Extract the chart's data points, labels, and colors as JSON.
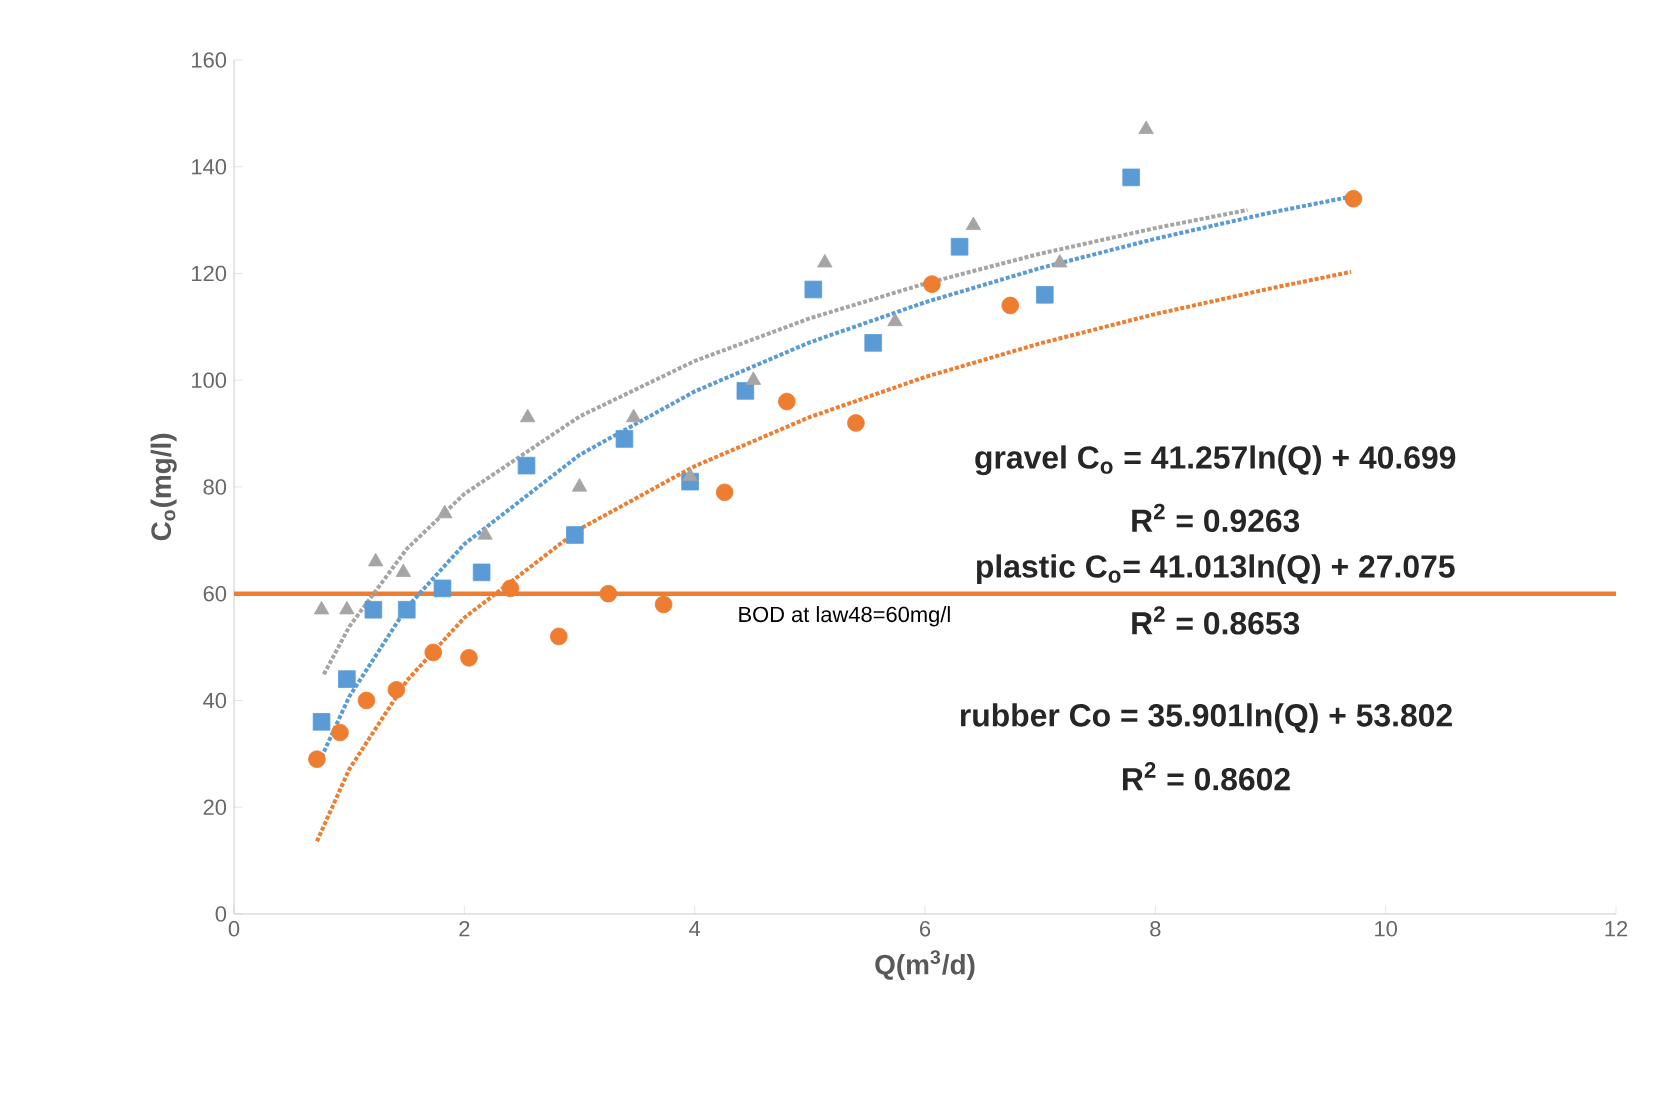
{
  "chart_data": {
    "type": "scatter",
    "xlabel": "Q(m$^{3}$/d)",
    "ylabel": "C$_{o}$(mg/l)",
    "xlim": [
      0,
      12
    ],
    "ylim": [
      0,
      160
    ],
    "xticks": [
      0,
      2,
      4,
      6,
      8,
      10,
      12
    ],
    "yticks": [
      0,
      20,
      40,
      60,
      80,
      100,
      120,
      140,
      160
    ],
    "series": [
      {
        "marker": "triangle",
        "color": "#a5a5a5",
        "x": [
          0.76,
          0.98,
          1.23,
          1.47,
          1.83,
          2.18,
          2.55,
          3.0,
          3.47,
          3.96,
          4.51,
          5.13,
          5.74,
          6.42,
          7.17,
          7.92
        ],
        "values": [
          57,
          57,
          66,
          64,
          75,
          71,
          93,
          80,
          93,
          82,
          100,
          122,
          111,
          129,
          122,
          147
        ]
      },
      {
        "marker": "square",
        "color": "#5b9bd5",
        "x": [
          0.76,
          0.98,
          1.21,
          1.5,
          1.81,
          2.15,
          2.54,
          2.96,
          3.39,
          3.96,
          4.44,
          5.03,
          5.55,
          6.3,
          7.04,
          7.79
        ],
        "values": [
          36,
          44,
          57,
          57,
          61,
          64,
          84,
          71,
          89,
          81,
          98,
          117,
          107,
          125,
          116,
          138
        ]
      },
      {
        "marker": "circle",
        "color": "#ed7d31",
        "x": [
          0.72,
          0.92,
          1.15,
          1.41,
          1.73,
          2.04,
          2.4,
          2.82,
          3.25,
          3.73,
          4.26,
          4.8,
          5.4,
          6.06,
          6.74,
          9.72
        ],
        "values": [
          29,
          34,
          40,
          42,
          49,
          48,
          61,
          52,
          60,
          58,
          79,
          96,
          92,
          118,
          114,
          134
        ]
      },
      {
        "type": "line",
        "line_style": "dotted",
        "marker": "none",
        "color": "#a5a5a5",
        "x": [
          0.78,
          1,
          1.5,
          2,
          3,
          4,
          5,
          6,
          7,
          8,
          8.8
        ],
        "values": [
          44.9,
          53.8,
          68.4,
          78.7,
          93.2,
          103.6,
          111.6,
          118.1,
          123.7,
          128.5,
          131.9
        ]
      },
      {
        "type": "line",
        "line_style": "dotted",
        "marker": "none",
        "color": "#5b9bd5",
        "x": [
          0.76,
          1,
          1.5,
          2,
          3,
          4,
          5,
          6,
          7,
          8,
          9,
          9.7
        ],
        "values": [
          29.4,
          40.7,
          57.4,
          69.3,
          86.0,
          97.9,
          107.1,
          114.6,
          121.0,
          126.5,
          131.4,
          134.4
        ]
      },
      {
        "type": "line",
        "line_style": "dotted",
        "marker": "none",
        "color": "#ed7d31",
        "x": [
          0.72,
          1,
          1.5,
          2,
          3,
          4,
          5,
          6,
          7,
          8,
          9,
          9.7
        ],
        "values": [
          13.6,
          27.1,
          43.7,
          55.5,
          72.1,
          83.9,
          93.1,
          100.6,
          106.9,
          112.4,
          117.2,
          120.3
        ]
      }
    ],
    "ref_lines": [
      {
        "axis": "y",
        "value": 60,
        "label": "BOD at law48=60mg/l",
        "color": "#ed7d31",
        "line_style": "solid"
      }
    ],
    "annotations": [
      "gravel C$_{o}$ = 41.257ln(Q) + 40.699",
      "R$^{2}$ = 0.9263",
      "plastic C$_{o}$= 41.013ln(Q) + 27.075",
      "R$^{2}$ = 0.8653",
      "rubber Co = 35.901ln(Q) + 53.802",
      "R$^{2}$ = 0.8602"
    ]
  }
}
